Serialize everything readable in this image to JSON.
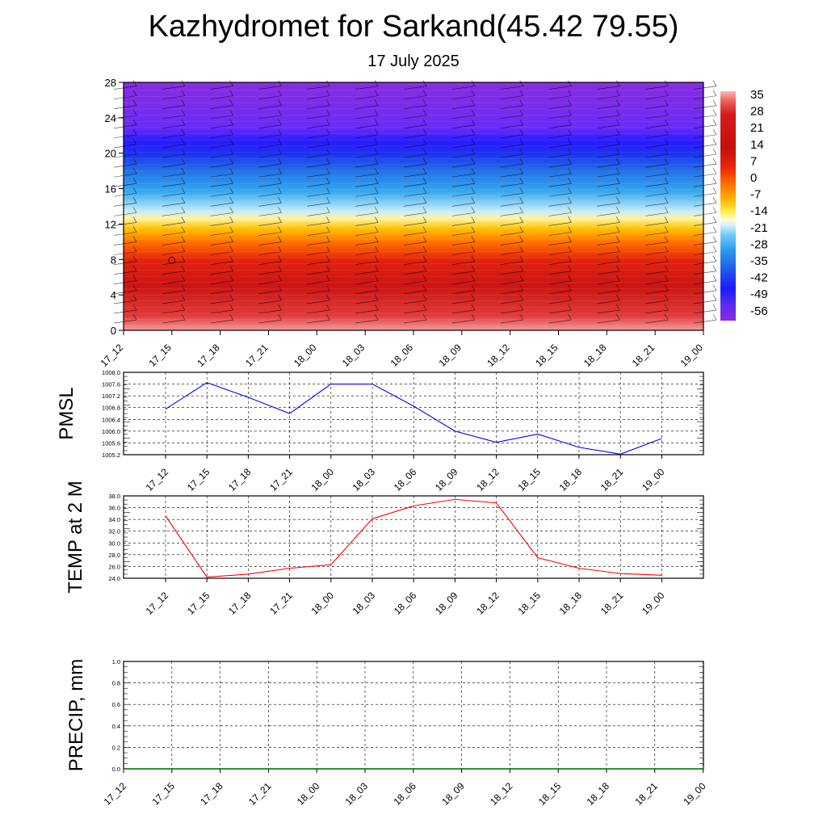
{
  "title": "Kazhydromet for Sarkand(45.42 79.55)",
  "subtitle": "17 July 2025",
  "colors": {
    "pmsl_line": "#0000ff",
    "temp_line": "#ff0000",
    "precip_line": "#007a00"
  },
  "chart_data": [
    {
      "type": "heatmap",
      "title": "",
      "x_ticks": [
        "17_12",
        "17_15",
        "17_18",
        "17_21",
        "18_00",
        "18_03",
        "18_06",
        "18_09",
        "18_12",
        "18_15",
        "18_18",
        "18_21",
        "19_00"
      ],
      "y_ticks": [
        "0",
        "4",
        "8",
        "12",
        "16",
        "20",
        "24",
        "28"
      ],
      "ylim": [
        0,
        28
      ],
      "colorbar_labels": [
        "35",
        "28",
        "21",
        "14",
        "7",
        "0",
        "-7",
        "-14",
        "-21",
        "-28",
        "-35",
        "-42",
        "-49",
        "-56"
      ],
      "overlay": "wind barbs"
    },
    {
      "type": "line",
      "ylabel": "PMSL",
      "x_ticks": [
        "17_12",
        "17_15",
        "17_18",
        "17_21",
        "18_00",
        "18_03",
        "18_06",
        "18_09",
        "18_12",
        "18_15",
        "18_18",
        "18_21",
        "19_00"
      ],
      "y_ticks": [
        "1008.0",
        "1007.6",
        "1007.2",
        "1006.8",
        "1006.4",
        "1006.0",
        "1005.6",
        "1005.2"
      ],
      "ylim": [
        1005.2,
        1008.0
      ],
      "values": [
        1006.75,
        1007.65,
        1007.15,
        1006.6,
        1007.6,
        1007.6,
        1006.85,
        1006.0,
        1005.62,
        1005.9,
        1005.45,
        1005.22,
        1005.75
      ]
    },
    {
      "type": "line",
      "ylabel": "TEMP at 2 M",
      "x_ticks": [
        "17_12",
        "17_15",
        "17_18",
        "17_21",
        "18_00",
        "18_03",
        "18_06",
        "18_09",
        "18_12",
        "18_15",
        "18_18",
        "18_21",
        "19_00"
      ],
      "y_ticks": [
        "38.0",
        "36.0",
        "34.0",
        "32.0",
        "30.0",
        "28.0",
        "26.0",
        "24.0"
      ],
      "ylim": [
        24.0,
        38.0
      ],
      "values": [
        34.6,
        24.2,
        24.7,
        25.7,
        26.3,
        34.1,
        36.3,
        37.4,
        36.8,
        27.5,
        25.7,
        24.8,
        24.5
      ]
    },
    {
      "type": "line",
      "ylabel": "PRECIP, mm",
      "x_ticks": [
        "17_12",
        "17_15",
        "17_18",
        "17_21",
        "18_00",
        "18_03",
        "18_06",
        "18_09",
        "18_12",
        "18_15",
        "18_18",
        "18_21",
        "19_00"
      ],
      "y_ticks": [
        "1.0",
        "0.8",
        "0.6",
        "0.4",
        "0.2",
        "0.0"
      ],
      "ylim": [
        0.0,
        1.0
      ],
      "values": [
        0,
        0,
        0,
        0,
        0,
        0,
        0,
        0,
        0,
        0,
        0,
        0,
        0
      ]
    }
  ]
}
